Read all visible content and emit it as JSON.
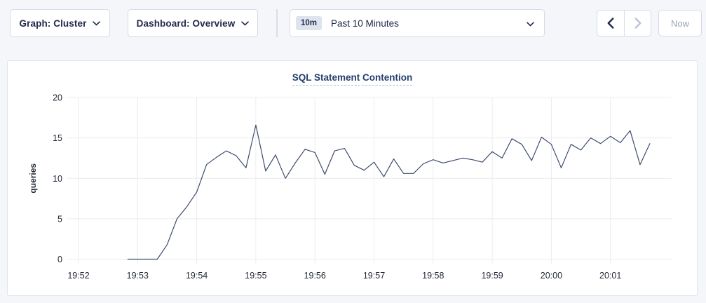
{
  "toolbar": {
    "graph_dropdown": {
      "label": "Graph: Cluster"
    },
    "dashboard_dropdown": {
      "label": "Dashboard: Overview"
    },
    "time_range": {
      "badge": "10m",
      "label": "Past 10 Minutes"
    },
    "prev_button": {
      "enabled": true
    },
    "next_button": {
      "enabled": false
    },
    "now_button": {
      "label": "Now",
      "enabled": false
    }
  },
  "icons": {
    "graph_dropdown_chevron": "chevron-down",
    "dashboard_dropdown_chevron": "chevron-down",
    "time_range_chevron": "chevron-down",
    "prev": "chevron-left",
    "next": "chevron-right"
  },
  "colors": {
    "page_bg": "#f4f6fa",
    "panel_bg": "#ffffff",
    "line": "#3d4c6d",
    "grid": "#ececef",
    "tick_text": "#242a35",
    "title_text": "#253f6e",
    "enabled_icon": "#1f2b48",
    "disabled_icon": "#b9c2d4"
  },
  "chart_data": {
    "type": "line",
    "title": "SQL Statement Contention",
    "xlabel": "",
    "ylabel": "queries",
    "ylim": [
      0,
      20
    ],
    "y_ticks": [
      0,
      5,
      10,
      15,
      20
    ],
    "x_ticks": [
      "19:52",
      "19:53",
      "19:54",
      "19:55",
      "19:56",
      "19:57",
      "19:58",
      "19:59",
      "20:00",
      "20:01"
    ],
    "grid": true,
    "legend": "none",
    "series_name": "queries",
    "points": [
      {
        "t": "19:52:50",
        "v": 0
      },
      {
        "t": "19:53:00",
        "v": 0
      },
      {
        "t": "19:53:10",
        "v": 0
      },
      {
        "t": "19:53:20",
        "v": 0
      },
      {
        "t": "19:53:30",
        "v": 1.8
      },
      {
        "t": "19:53:40",
        "v": 5.0
      },
      {
        "t": "19:53:50",
        "v": 6.5
      },
      {
        "t": "19:54:00",
        "v": 8.3
      },
      {
        "t": "19:54:10",
        "v": 11.7
      },
      {
        "t": "19:54:20",
        "v": 12.6
      },
      {
        "t": "19:54:30",
        "v": 13.4
      },
      {
        "t": "19:54:40",
        "v": 12.8
      },
      {
        "t": "19:54:50",
        "v": 11.3
      },
      {
        "t": "19:55:00",
        "v": 16.6
      },
      {
        "t": "19:55:10",
        "v": 10.9
      },
      {
        "t": "19:55:20",
        "v": 12.9
      },
      {
        "t": "19:55:30",
        "v": 10.0
      },
      {
        "t": "19:55:40",
        "v": 11.9
      },
      {
        "t": "19:55:50",
        "v": 13.6
      },
      {
        "t": "19:56:00",
        "v": 13.2
      },
      {
        "t": "19:56:10",
        "v": 10.5
      },
      {
        "t": "19:56:20",
        "v": 13.4
      },
      {
        "t": "19:56:30",
        "v": 13.7
      },
      {
        "t": "19:56:40",
        "v": 11.6
      },
      {
        "t": "19:56:50",
        "v": 11.0
      },
      {
        "t": "19:57:00",
        "v": 12.0
      },
      {
        "t": "19:57:10",
        "v": 10.2
      },
      {
        "t": "19:57:20",
        "v": 12.4
      },
      {
        "t": "19:57:30",
        "v": 10.6
      },
      {
        "t": "19:57:40",
        "v": 10.6
      },
      {
        "t": "19:57:50",
        "v": 11.8
      },
      {
        "t": "19:58:00",
        "v": 12.3
      },
      {
        "t": "19:58:10",
        "v": 11.9
      },
      {
        "t": "19:58:20",
        "v": 12.2
      },
      {
        "t": "19:58:30",
        "v": 12.5
      },
      {
        "t": "19:58:40",
        "v": 12.3
      },
      {
        "t": "19:58:50",
        "v": 12.0
      },
      {
        "t": "19:59:00",
        "v": 13.3
      },
      {
        "t": "19:59:10",
        "v": 12.5
      },
      {
        "t": "19:59:20",
        "v": 14.9
      },
      {
        "t": "19:59:30",
        "v": 14.2
      },
      {
        "t": "19:59:40",
        "v": 12.2
      },
      {
        "t": "19:59:50",
        "v": 15.1
      },
      {
        "t": "20:00:00",
        "v": 14.2
      },
      {
        "t": "20:00:10",
        "v": 11.3
      },
      {
        "t": "20:00:20",
        "v": 14.2
      },
      {
        "t": "20:00:30",
        "v": 13.5
      },
      {
        "t": "20:00:40",
        "v": 15.0
      },
      {
        "t": "20:00:50",
        "v": 14.3
      },
      {
        "t": "20:01:00",
        "v": 15.2
      },
      {
        "t": "20:01:10",
        "v": 14.4
      },
      {
        "t": "20:01:20",
        "v": 15.9
      },
      {
        "t": "20:01:30",
        "v": 11.7
      },
      {
        "t": "20:01:40",
        "v": 14.3
      }
    ]
  }
}
